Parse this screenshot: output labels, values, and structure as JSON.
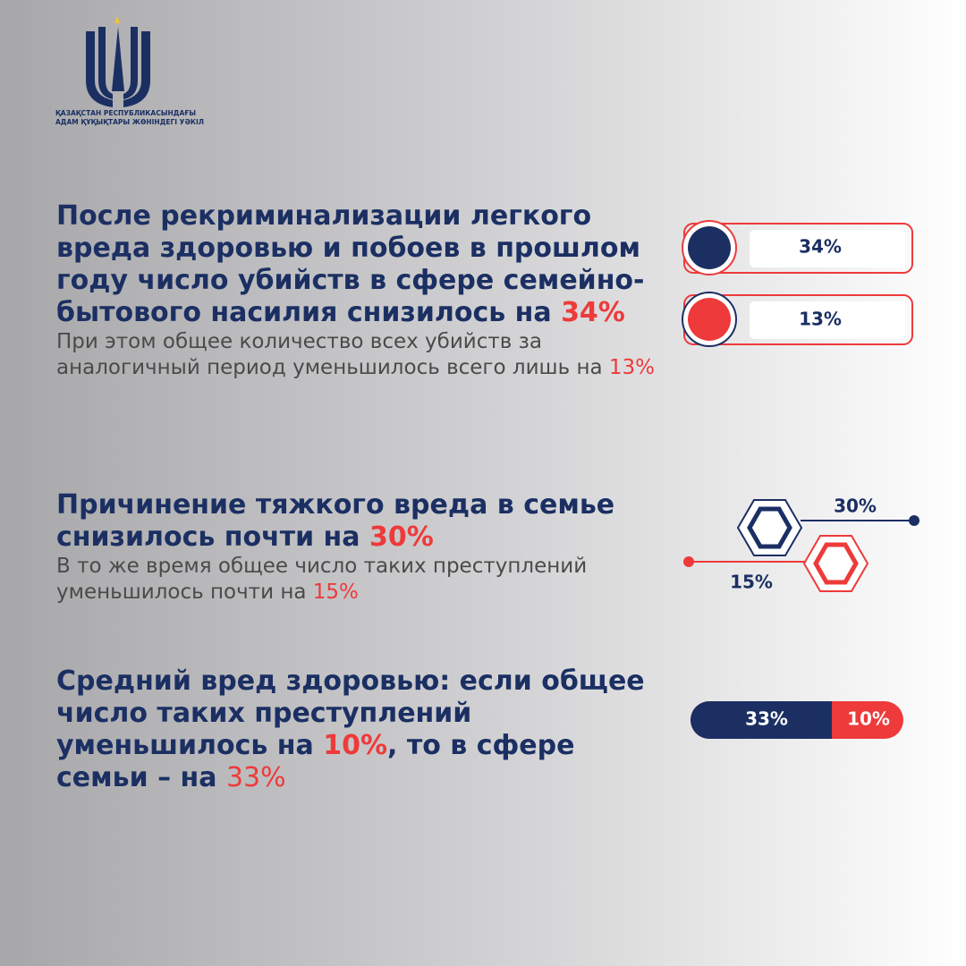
{
  "logo": {
    "lines": [
      "ҚАЗАҚСТАН РЕСПУБЛИКАСЫНДАҒЫ",
      "АДАМ ҚҰҚЫҚТАРЫ ЖӨНІНДЕГІ УӘКІЛ"
    ]
  },
  "sections": [
    {
      "heading": [
        "После рекриминализации легкого вреда здоровью и побоев в прошлом году число убийств в сфере семейно-бытового насилия снизилось на ",
        "34%"
      ],
      "text": [
        "При этом общее количество всех убийств за аналогичный период уменьшилось всего лишь на ",
        "13%"
      ],
      "graphic": [
        "34%",
        "13%"
      ]
    },
    {
      "heading": [
        "Причинение тяжкого вреда в семье снизилось почти на ",
        "30%"
      ],
      "text": [
        "В то же время общее число таких преступлений уменьшилось почти на ",
        "15%"
      ],
      "graphic": [
        "30%",
        "15%"
      ]
    },
    {
      "heading": [
        "Средний вред здоровью:  если общее число таких преступлений уменьшилось на ",
        "10%",
        ", то в сфере семьи – на ",
        "33%"
      ],
      "graphic": [
        "33%",
        "10%"
      ]
    }
  ]
}
